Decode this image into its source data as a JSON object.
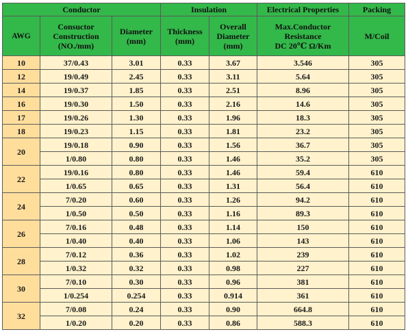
{
  "header": {
    "group_conductor": "Conductor",
    "group_insulation": "Insulation",
    "group_electrical": "Electrical Properties",
    "group_packing": "Packing",
    "col_awg": "AWG",
    "col_construction_l1": "Consuctor",
    "col_construction_l2": "Construction",
    "col_construction_l3": "(NO./mm)",
    "col_diameter_l1": "Diameter",
    "col_diameter_l2": "(mm)",
    "col_thickness_l1": "Thickness",
    "col_thickness_l2": "(mm)",
    "col_overall_l1": "Overall",
    "col_overall_l2": "Diameter",
    "col_overall_l3": "(mm)",
    "col_resistance_l1": "Max.Conductor",
    "col_resistance_l2": "Resistance",
    "col_resistance_l3": "DC 20℃ Ω/Km",
    "col_packing": "M/Coil"
  },
  "groups": [
    {
      "awg": "10",
      "rows": [
        {
          "construction": "37/0.43",
          "diameter": "3.01",
          "thickness": "0.33",
          "overall": "3.67",
          "resistance": "3.546",
          "packing": "305"
        }
      ]
    },
    {
      "awg": "12",
      "rows": [
        {
          "construction": "19/0.49",
          "diameter": "2.45",
          "thickness": "0.33",
          "overall": "3.11",
          "resistance": "5.64",
          "packing": "305"
        }
      ]
    },
    {
      "awg": "14",
      "rows": [
        {
          "construction": "19/0.37",
          "diameter": "1.85",
          "thickness": "0.33",
          "overall": "2.51",
          "resistance": "8.96",
          "packing": "305"
        }
      ]
    },
    {
      "awg": "16",
      "rows": [
        {
          "construction": "19/0.30",
          "diameter": "1.50",
          "thickness": "0.33",
          "overall": "2.16",
          "resistance": "14.6",
          "packing": "305"
        }
      ]
    },
    {
      "awg": "17",
      "rows": [
        {
          "construction": "19/0.26",
          "diameter": "1.30",
          "thickness": "0.33",
          "overall": "1.96",
          "resistance": "18.3",
          "packing": "305"
        }
      ]
    },
    {
      "awg": "18",
      "rows": [
        {
          "construction": "19/0.23",
          "diameter": "1.15",
          "thickness": "0.33",
          "overall": "1.81",
          "resistance": "23.2",
          "packing": "305"
        }
      ]
    },
    {
      "awg": "20",
      "rows": [
        {
          "construction": "19/0.18",
          "diameter": "0.90",
          "thickness": "0.33",
          "overall": "1.56",
          "resistance": "36.7",
          "packing": "305"
        },
        {
          "construction": "1/0.80",
          "diameter": "0.80",
          "thickness": "0.33",
          "overall": "1.46",
          "resistance": "35.2",
          "packing": "305"
        }
      ]
    },
    {
      "awg": "22",
      "rows": [
        {
          "construction": "19/0.16",
          "diameter": "0.80",
          "thickness": "0.33",
          "overall": "1.46",
          "resistance": "59.4",
          "packing": "610"
        },
        {
          "construction": "1/0.65",
          "diameter": "0.65",
          "thickness": "0.33",
          "overall": "1.31",
          "resistance": "56.4",
          "packing": "610"
        }
      ]
    },
    {
      "awg": "24",
      "rows": [
        {
          "construction": "7/0.20",
          "diameter": "0.60",
          "thickness": "0.33",
          "overall": "1.26",
          "resistance": "94.2",
          "packing": "610"
        },
        {
          "construction": "1/0.50",
          "diameter": "0.50",
          "thickness": "0.33",
          "overall": "1.16",
          "resistance": "89.3",
          "packing": "610"
        }
      ]
    },
    {
      "awg": "26",
      "rows": [
        {
          "construction": "7/0.16",
          "diameter": "0.48",
          "thickness": "0.33",
          "overall": "1.14",
          "resistance": "150",
          "packing": "610"
        },
        {
          "construction": "1/0.40",
          "diameter": "0.40",
          "thickness": "0.33",
          "overall": "1.06",
          "resistance": "143",
          "packing": "610"
        }
      ]
    },
    {
      "awg": "28",
      "rows": [
        {
          "construction": "7/0.12",
          "diameter": "0.36",
          "thickness": "0.33",
          "overall": "1.02",
          "resistance": "239",
          "packing": "610"
        },
        {
          "construction": "1/0.32",
          "diameter": "0.32",
          "thickness": "0.33",
          "overall": "0.98",
          "resistance": "227",
          "packing": "610"
        }
      ]
    },
    {
      "awg": "30",
      "rows": [
        {
          "construction": "7/0.10",
          "diameter": "0.30",
          "thickness": "0.33",
          "overall": "0.96",
          "resistance": "381",
          "packing": "610"
        },
        {
          "construction": "1/0.254",
          "diameter": "0.254",
          "thickness": "0.33",
          "overall": "0.914",
          "resistance": "361",
          "packing": "610"
        }
      ]
    },
    {
      "awg": "32",
      "rows": [
        {
          "construction": "7/0.08",
          "diameter": "0.24",
          "thickness": "0.33",
          "overall": "0.90",
          "resistance": "664.8",
          "packing": "610"
        },
        {
          "construction": "1/0.20",
          "diameter": "0.20",
          "thickness": "0.33",
          "overall": "0.86",
          "resistance": "588.3",
          "packing": "610"
        }
      ]
    }
  ],
  "colors": {
    "header_green": "#33b84a",
    "awg_orange": "#ffde9c",
    "cell_cream": "#fff2cc",
    "border": "#5a5a5a"
  }
}
